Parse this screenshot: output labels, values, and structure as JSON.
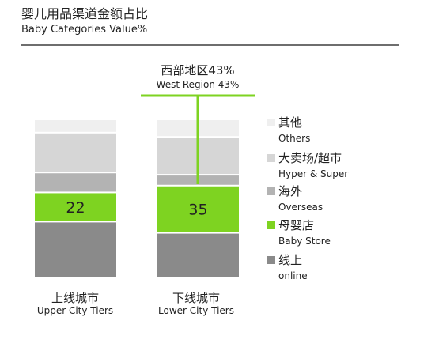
{
  "header": {
    "title_zh": "婴儿用品渠道金额占比",
    "title_en": "Baby Categories Value%"
  },
  "callout": {
    "label_zh": "西部地区43%",
    "label_en": "West Region 43%"
  },
  "colors": {
    "others": "#efefef",
    "hyper_super": "#d6d6d6",
    "overseas": "#b3b3b3",
    "baby_store": "#7ed321",
    "online": "#8a8a8a",
    "callout_line": "#7ed321",
    "rule": "#6e6e6e"
  },
  "chart_data": {
    "type": "bar",
    "stacked": true,
    "normalized": true,
    "categories": [
      "上线城市",
      "下线城市"
    ],
    "category_labels_en": [
      "Upper City Tiers",
      "Lower City Tiers"
    ],
    "series": [
      {
        "name": "其他",
        "name_en": "Others",
        "values": [
          10,
          13
        ]
      },
      {
        "name": "大卖场/超市",
        "name_en": "Hyper & Super",
        "values": [
          30,
          28
        ]
      },
      {
        "name": "海外",
        "name_en": "Overseas",
        "values": [
          15,
          8
        ]
      },
      {
        "name": "母婴店",
        "name_en": "Baby Store",
        "values": [
          22,
          35
        ]
      },
      {
        "name": "线上",
        "name_en": "online",
        "values": [
          42,
          33
        ]
      }
    ],
    "data_labels": [
      {
        "series": "母婴店",
        "values": [
          "22",
          "35"
        ]
      }
    ],
    "legend_placement": "right",
    "grid": false
  }
}
